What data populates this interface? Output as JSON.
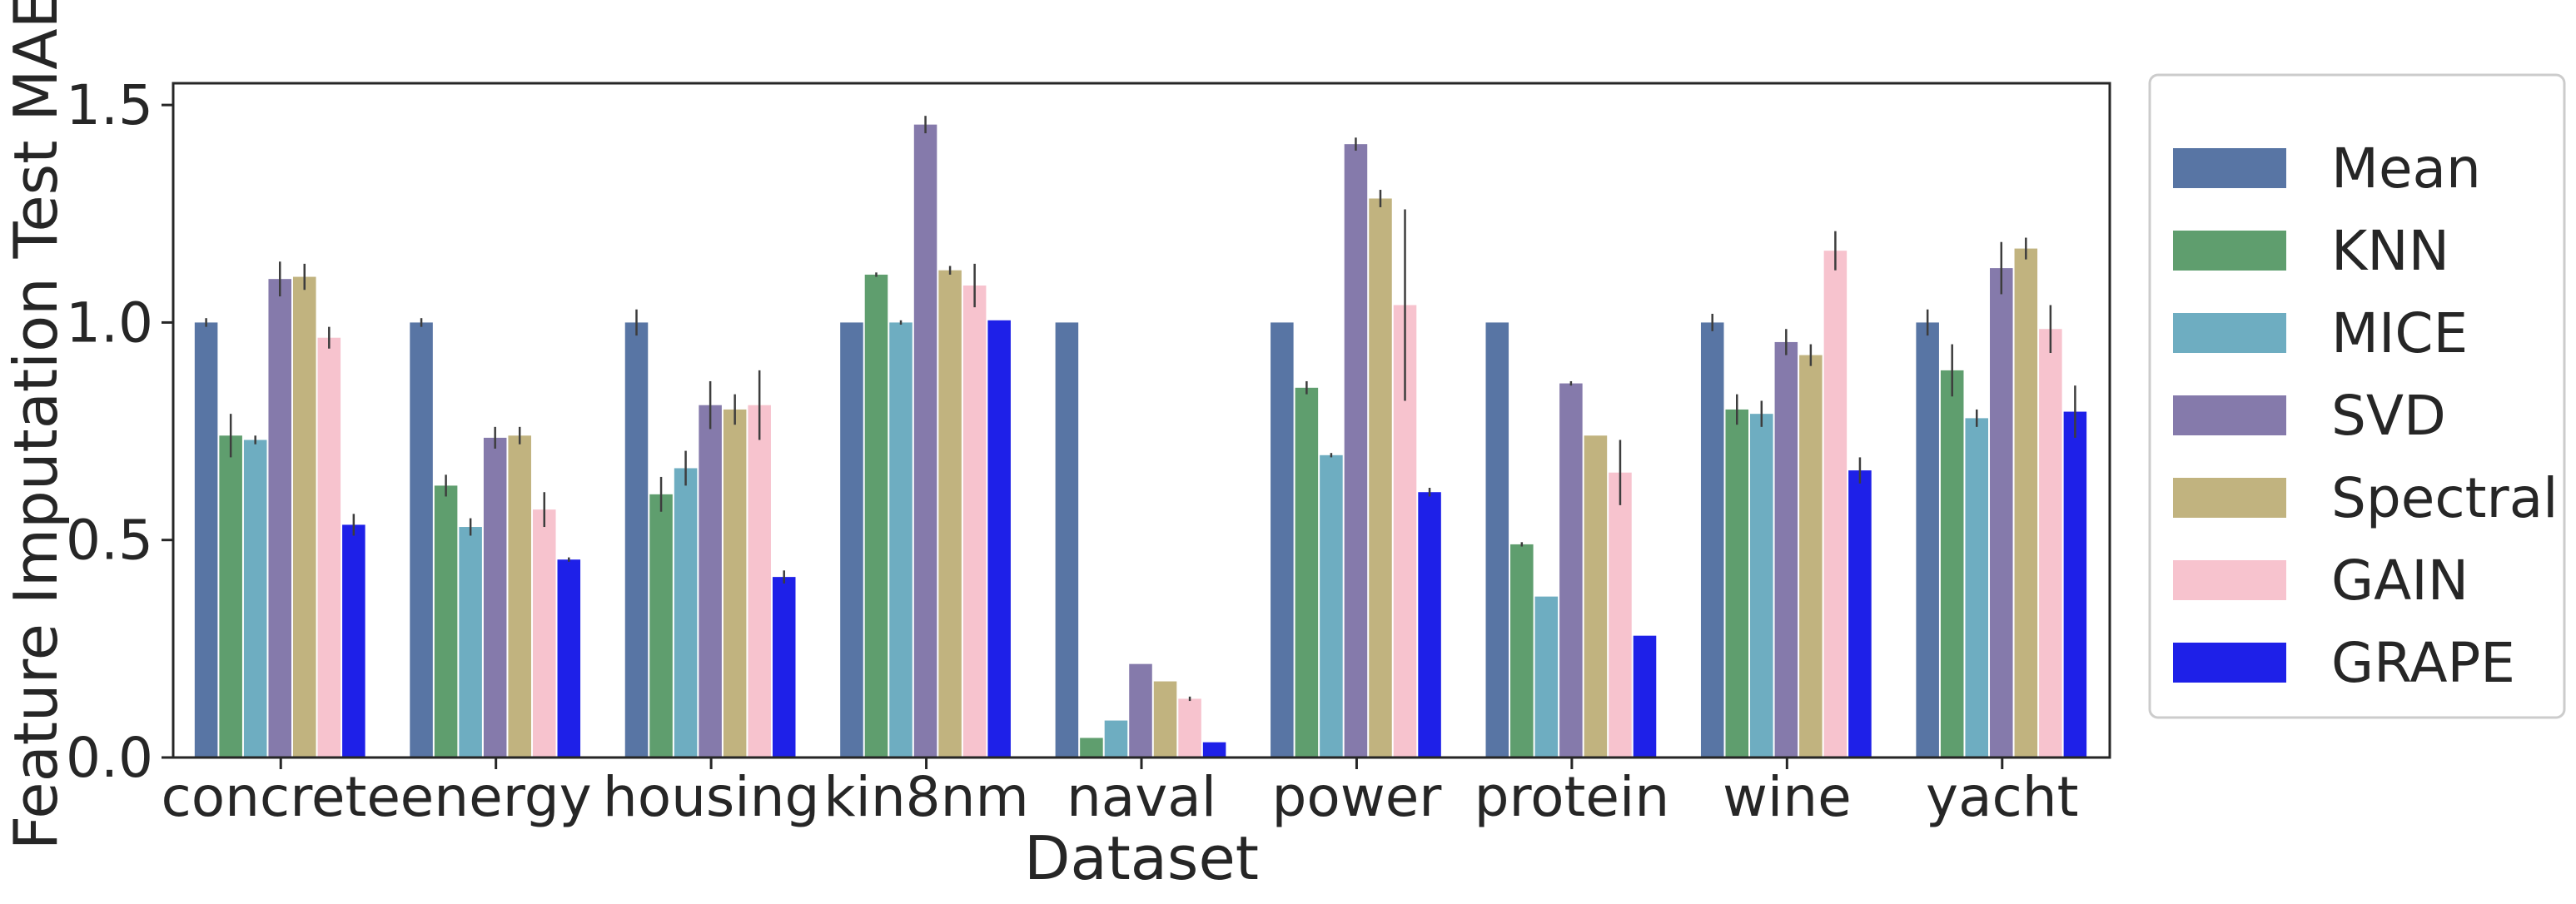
{
  "chart_data": {
    "type": "bar",
    "title": "",
    "xlabel": "Dataset",
    "ylabel": "Feature Imputation Test MAE",
    "ylim": [
      0,
      1.55
    ],
    "yticks": [
      "0.0",
      "0.5",
      "1.0",
      "1.5"
    ],
    "ytick_values": [
      0,
      0.5,
      1.0,
      1.5
    ],
    "grid": false,
    "legend_placement": "right, outside",
    "categories": [
      "concrete",
      "energy",
      "housing",
      "kin8nm",
      "naval",
      "power",
      "protein",
      "wine",
      "yacht"
    ],
    "series": [
      {
        "name": "Mean",
        "color": "#5875a4",
        "values": [
          1.0,
          1.0,
          1.0,
          1.0,
          1.0,
          1.0,
          1.0,
          1.0,
          1.0
        ],
        "errors": [
          0.01,
          0.01,
          0.03,
          0.0,
          0.0,
          0.0,
          0.0,
          0.02,
          0.03
        ]
      },
      {
        "name": "KNN",
        "color": "#5f9e6e",
        "values": [
          0.74,
          0.625,
          0.605,
          1.11,
          0.045,
          0.85,
          0.49,
          0.8,
          0.89
        ],
        "errors": [
          0.05,
          0.025,
          0.04,
          0.005,
          0.0,
          0.015,
          0.005,
          0.035,
          0.06
        ]
      },
      {
        "name": "MICE",
        "color": "#6eadc1",
        "values": [
          0.73,
          0.53,
          0.665,
          1.0,
          0.085,
          0.695,
          0.37,
          0.79,
          0.78
        ],
        "errors": [
          0.01,
          0.02,
          0.04,
          0.005,
          0.0,
          0.005,
          0.0,
          0.03,
          0.02
        ]
      },
      {
        "name": "SVD",
        "color": "#857aab",
        "values": [
          1.1,
          0.735,
          0.81,
          1.455,
          0.215,
          1.41,
          0.86,
          0.955,
          1.125
        ],
        "errors": [
          0.04,
          0.025,
          0.055,
          0.02,
          0.0,
          0.015,
          0.005,
          0.03,
          0.06
        ]
      },
      {
        "name": "Spectral",
        "color": "#c1b37f",
        "values": [
          1.105,
          0.74,
          0.8,
          1.12,
          0.175,
          1.285,
          0.74,
          0.925,
          1.17
        ],
        "errors": [
          0.03,
          0.02,
          0.035,
          0.01,
          0.0,
          0.02,
          0.0,
          0.025,
          0.025
        ]
      },
      {
        "name": "GAIN",
        "color": "#f7c3ce",
        "values": [
          0.965,
          0.57,
          0.81,
          1.085,
          0.135,
          1.04,
          0.655,
          1.165,
          0.985
        ],
        "errors": [
          0.025,
          0.04,
          0.08,
          0.05,
          0.005,
          0.22,
          0.075,
          0.045,
          0.055
        ]
      },
      {
        "name": "GRAPE",
        "color": "#1e20e8",
        "values": [
          0.535,
          0.455,
          0.415,
          1.005,
          0.035,
          0.61,
          0.28,
          0.66,
          0.795
        ],
        "errors": [
          0.025,
          0.005,
          0.015,
          0.0,
          0.0,
          0.01,
          0.0,
          0.03,
          0.06
        ]
      }
    ]
  }
}
